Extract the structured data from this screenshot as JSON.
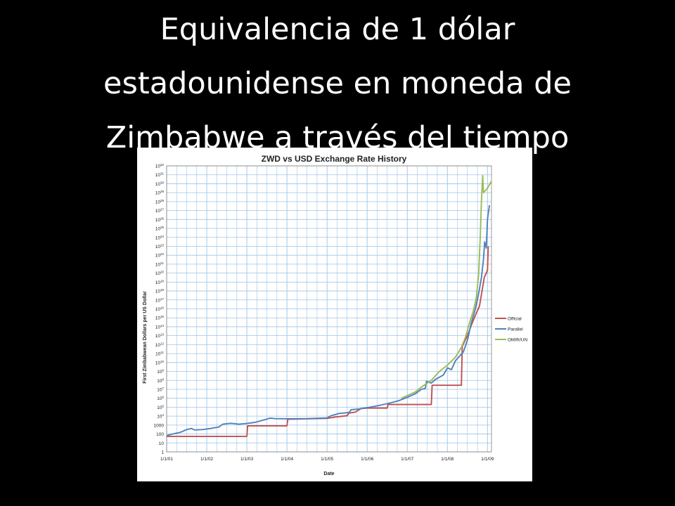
{
  "slide": {
    "title_lines": [
      "Equivalencia de 1 dólar",
      "estadounidense en moneda de",
      "Zimbabwe a través del tiempo"
    ]
  },
  "chart_data": {
    "type": "line",
    "title": "ZWD vs USD Exchange Rate History",
    "xlabel": "Date",
    "ylabel": "First Zimbabwean Dollars per US Dollar",
    "y_scale": "log",
    "ylim_exponent": [
      0,
      32
    ],
    "grid": true,
    "legend_position": "right",
    "x_ticks": [
      "1/1/01",
      "1/1/02",
      "1/1/03",
      "1/1/04",
      "1/1/05",
      "1/1/06",
      "1/1/07",
      "1/1/08",
      "1/1/09"
    ],
    "y_ticks": [
      {
        "base": "1",
        "exp": ""
      },
      {
        "base": "10",
        "exp": ""
      },
      {
        "base": "100",
        "exp": ""
      },
      {
        "base": "1000",
        "exp": ""
      },
      {
        "base": "10",
        "exp": "4"
      },
      {
        "base": "10",
        "exp": "5"
      },
      {
        "base": "10",
        "exp": "6"
      },
      {
        "base": "10",
        "exp": "7"
      },
      {
        "base": "10",
        "exp": "8"
      },
      {
        "base": "10",
        "exp": "9"
      },
      {
        "base": "10",
        "exp": "10"
      },
      {
        "base": "10",
        "exp": "11"
      },
      {
        "base": "10",
        "exp": "12"
      },
      {
        "base": "10",
        "exp": "13"
      },
      {
        "base": "10",
        "exp": "14"
      },
      {
        "base": "10",
        "exp": "15"
      },
      {
        "base": "10",
        "exp": "16"
      },
      {
        "base": "10",
        "exp": "17"
      },
      {
        "base": "10",
        "exp": "18"
      },
      {
        "base": "10",
        "exp": "19"
      },
      {
        "base": "10",
        "exp": "20"
      },
      {
        "base": "10",
        "exp": "21"
      },
      {
        "base": "10",
        "exp": "22"
      },
      {
        "base": "10",
        "exp": "23"
      },
      {
        "base": "10",
        "exp": "24"
      },
      {
        "base": "10",
        "exp": "25"
      },
      {
        "base": "10",
        "exp": "26"
      },
      {
        "base": "10",
        "exp": "27"
      },
      {
        "base": "10",
        "exp": "28"
      },
      {
        "base": "10",
        "exp": "29"
      },
      {
        "base": "10",
        "exp": "30"
      },
      {
        "base": "10",
        "exp": "31"
      },
      {
        "base": "10",
        "exp": "32"
      }
    ],
    "series": [
      {
        "name": "Official",
        "color": "#c0504d",
        "points": [
          [
            2001.0,
            1.74
          ],
          [
            2003.0,
            1.74
          ],
          [
            2003.02,
            2.92
          ],
          [
            2004.0,
            2.92
          ],
          [
            2004.02,
            3.65
          ],
          [
            2005.0,
            3.75
          ],
          [
            2005.2,
            3.9
          ],
          [
            2005.5,
            4.05
          ],
          [
            2005.55,
            4.35
          ],
          [
            2005.7,
            4.45
          ],
          [
            2005.85,
            4.85
          ],
          [
            2006.0,
            4.9
          ],
          [
            2006.5,
            4.9
          ],
          [
            2006.52,
            5.3
          ],
          [
            2007.0,
            5.3
          ],
          [
            2007.6,
            5.3
          ],
          [
            2007.62,
            7.45
          ],
          [
            2008.35,
            7.45
          ],
          [
            2008.37,
            11.8
          ],
          [
            2008.5,
            13.0
          ],
          [
            2008.6,
            14.2
          ],
          [
            2008.7,
            15.3
          ],
          [
            2008.8,
            16.3
          ],
          [
            2008.85,
            17.6
          ],
          [
            2008.92,
            19.5
          ],
          [
            2009.0,
            20.3
          ],
          [
            2009.02,
            23.0
          ]
        ]
      },
      {
        "name": "Parallel",
        "color": "#4f81bd",
        "points": [
          [
            2001.0,
            1.8
          ],
          [
            2001.1,
            1.95
          ],
          [
            2001.35,
            2.2
          ],
          [
            2001.5,
            2.5
          ],
          [
            2001.62,
            2.62
          ],
          [
            2001.7,
            2.45
          ],
          [
            2001.9,
            2.5
          ],
          [
            2002.1,
            2.62
          ],
          [
            2002.3,
            2.78
          ],
          [
            2002.4,
            3.1
          ],
          [
            2002.6,
            3.2
          ],
          [
            2002.8,
            3.1
          ],
          [
            2003.0,
            3.18
          ],
          [
            2003.2,
            3.3
          ],
          [
            2003.45,
            3.6
          ],
          [
            2003.58,
            3.78
          ],
          [
            2003.7,
            3.72
          ],
          [
            2004.0,
            3.7
          ],
          [
            2004.5,
            3.72
          ],
          [
            2005.0,
            3.8
          ],
          [
            2005.1,
            4.05
          ],
          [
            2005.3,
            4.3
          ],
          [
            2005.55,
            4.4
          ],
          [
            2005.6,
            4.72
          ],
          [
            2005.8,
            4.8
          ],
          [
            2006.0,
            4.95
          ],
          [
            2006.2,
            5.1
          ],
          [
            2006.45,
            5.35
          ],
          [
            2006.6,
            5.5
          ],
          [
            2006.8,
            5.75
          ],
          [
            2007.0,
            6.1
          ],
          [
            2007.2,
            6.5
          ],
          [
            2007.35,
            7.0
          ],
          [
            2007.45,
            7.1
          ],
          [
            2007.48,
            7.9
          ],
          [
            2007.6,
            7.7
          ],
          [
            2007.7,
            8.1
          ],
          [
            2007.9,
            8.6
          ],
          [
            2008.0,
            9.4
          ],
          [
            2008.1,
            9.2
          ],
          [
            2008.2,
            10.2
          ],
          [
            2008.4,
            11.2
          ],
          [
            2008.5,
            12.5
          ],
          [
            2008.6,
            14.5
          ],
          [
            2008.7,
            16.0
          ],
          [
            2008.78,
            17.7
          ],
          [
            2008.85,
            19.5
          ],
          [
            2008.9,
            21.5
          ],
          [
            2008.93,
            23.5
          ],
          [
            2008.97,
            22.8
          ],
          [
            2009.0,
            26.0
          ],
          [
            2009.05,
            27.6
          ]
        ]
      },
      {
        "name": "OMIR/UN",
        "color": "#9bbb59",
        "points": [
          [
            2006.85,
            6.0
          ],
          [
            2007.0,
            6.3
          ],
          [
            2007.2,
            6.7
          ],
          [
            2007.4,
            7.4
          ],
          [
            2007.6,
            8.0
          ],
          [
            2007.8,
            9.0
          ],
          [
            2008.0,
            9.7
          ],
          [
            2008.2,
            10.6
          ],
          [
            2008.35,
            11.7
          ],
          [
            2008.45,
            12.8
          ],
          [
            2008.55,
            14.4
          ],
          [
            2008.65,
            15.8
          ],
          [
            2008.72,
            17.2
          ],
          [
            2008.78,
            19.8
          ],
          [
            2008.82,
            24.0
          ],
          [
            2008.85,
            28.0
          ],
          [
            2008.88,
            30.9
          ],
          [
            2008.9,
            29.0
          ],
          [
            2009.0,
            29.5
          ],
          [
            2009.1,
            30.3
          ]
        ]
      }
    ]
  }
}
